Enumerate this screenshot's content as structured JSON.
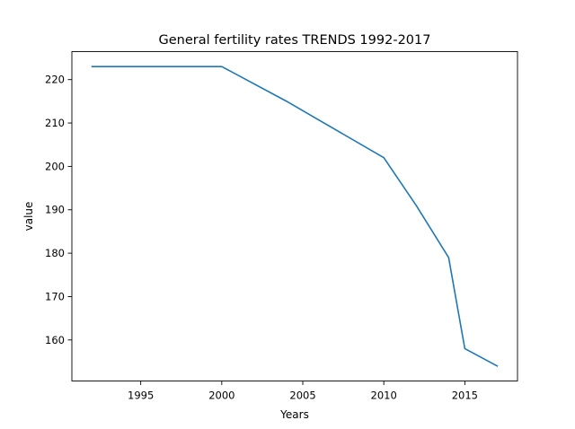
{
  "chart_data": {
    "type": "line",
    "title": "General fertility rates TRENDS 1992-2017",
    "xlabel": "Years",
    "ylabel": "value",
    "xlim": [
      1990.75,
      2018.25
    ],
    "ylim": [
      150.55,
      226.45
    ],
    "x_ticks": [
      1995,
      2000,
      2005,
      2010,
      2015
    ],
    "y_ticks": [
      160,
      170,
      180,
      190,
      200,
      210,
      220
    ],
    "grid": false,
    "legend": "none",
    "series": [
      {
        "color": "#1f77b4",
        "x": [
          1992,
          2000,
          2004,
          2010,
          2012,
          2014,
          2015,
          2017
        ],
        "values": [
          223,
          223,
          215,
          202,
          191,
          179,
          158,
          154
        ]
      }
    ]
  }
}
